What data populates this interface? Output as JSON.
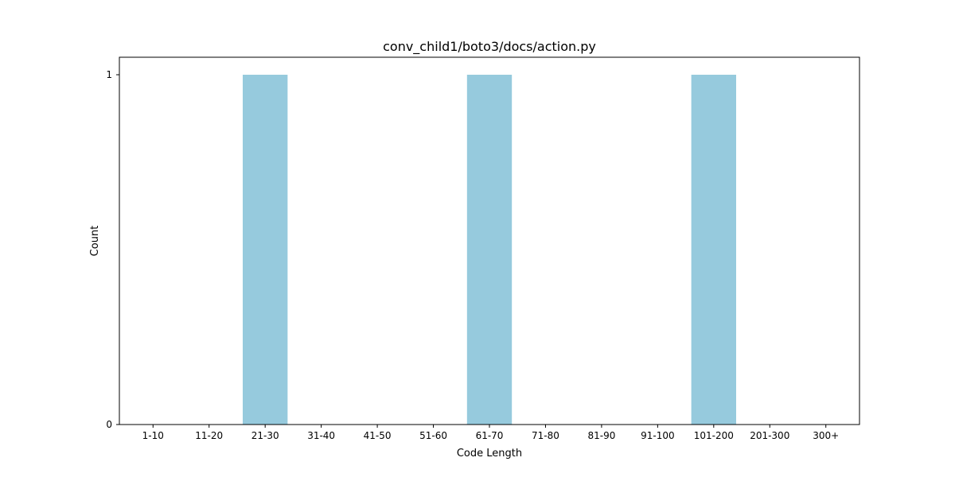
{
  "chart_data": {
    "type": "bar",
    "title": "conv_child1/boto3/docs/action.py",
    "xlabel": "Code Length",
    "ylabel": "Count",
    "categories": [
      "1-10",
      "11-20",
      "21-30",
      "31-40",
      "41-50",
      "51-60",
      "61-70",
      "71-80",
      "81-90",
      "91-100",
      "101-200",
      "201-300",
      "300+"
    ],
    "values": [
      0,
      0,
      1,
      0,
      0,
      0,
      1,
      0,
      0,
      0,
      1,
      0,
      0
    ],
    "yticks": [
      "0",
      "1"
    ],
    "ylim": [
      0,
      1.05
    ],
    "grid": false,
    "bar_color": "#96cadd"
  }
}
